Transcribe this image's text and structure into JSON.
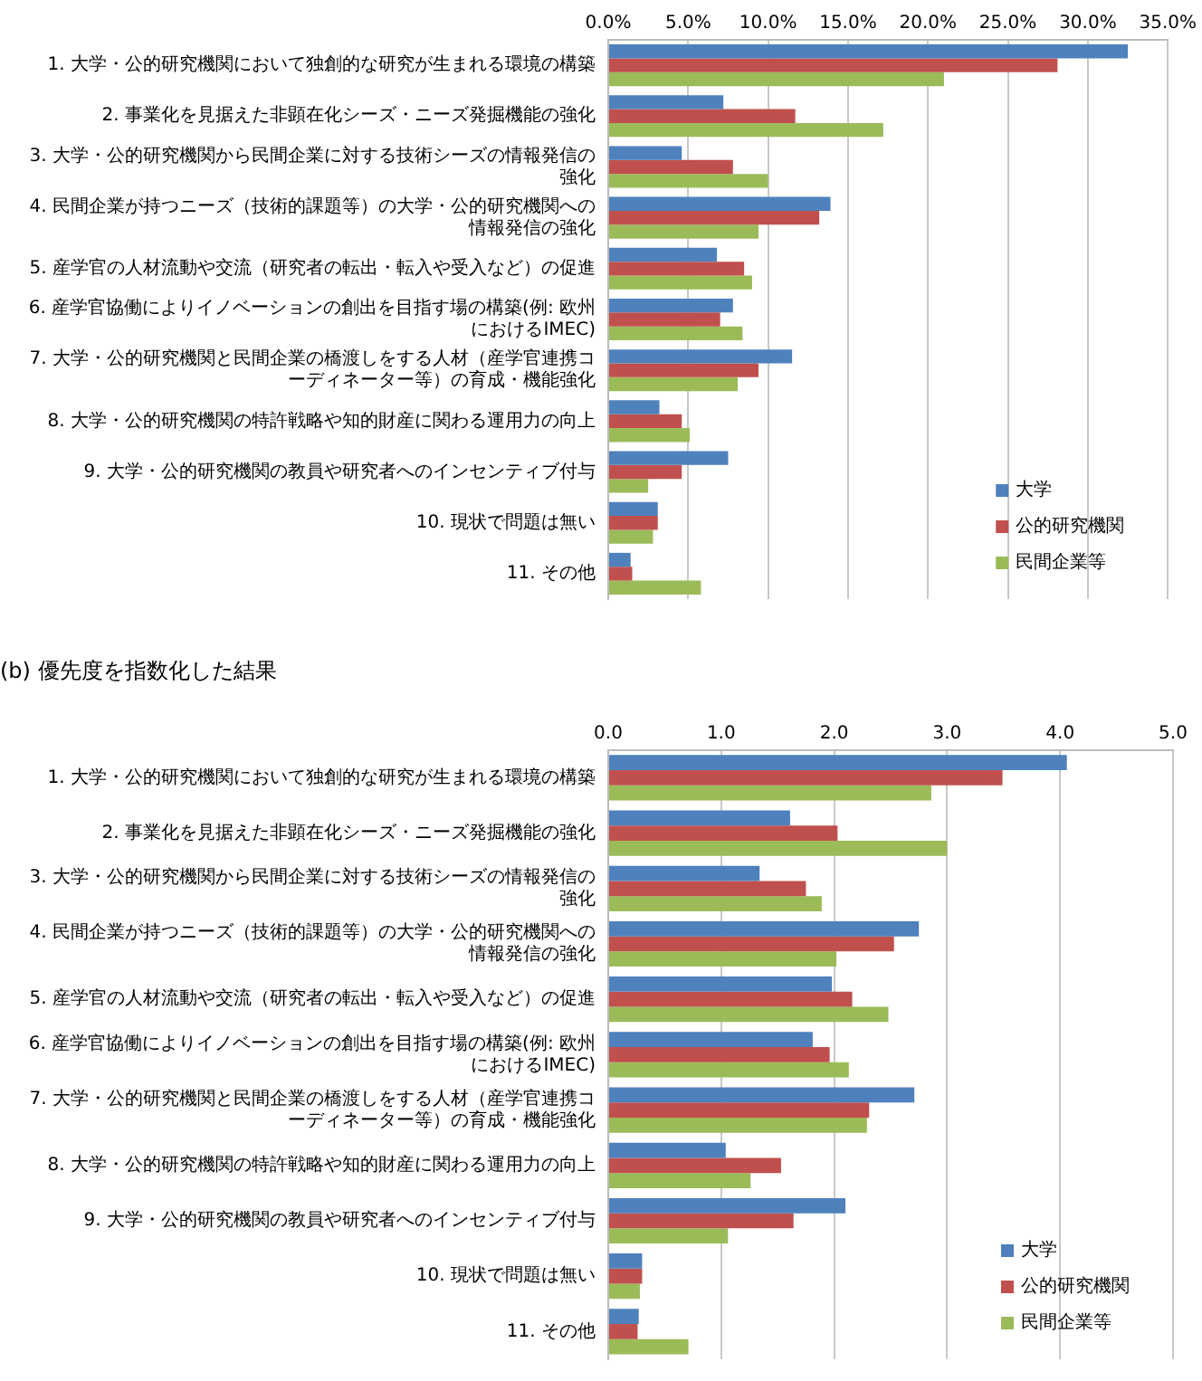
{
  "chart_data": [
    {
      "type": "bar",
      "orientation": "horizontal",
      "categories": [
        "1. 大学・公的研究機関において独創的な研究が生まれる環境の構築",
        "2. 事業化を見据えた非顕在化シーズ・ニーズ発掘機能の強化",
        "3. 大学・公的研究機関から民間企業に対する技術シーズの情報発信の強化",
        "4. 民間企業が持つニーズ（技術的課題等）の大学・公的研究機関への情報発信の強化",
        "5. 産学官の人材流動や交流（研究者の転出・転入や受入など）の促進",
        "6. 産学官協働によりイノベーションの創出を目指す場の構築(例: 欧州におけるIMEC)",
        "7. 大学・公的研究機関と民間企業の橋渡しをする人材（産学官連携コーディネーター等）の育成・機能強化",
        "8. 大学・公的研究機関の特許戦略や知的財産に関わる運用力の向上",
        "9. 大学・公的研究機関の教員や研究者へのインセンティブ付与",
        "10. 現状で問題は無い",
        "11. その他"
      ],
      "series": [
        {
          "name": "大学",
          "color": "#4f81bd",
          "values": [
            32.5,
            7.2,
            4.6,
            13.9,
            6.8,
            7.8,
            11.5,
            3.2,
            7.5,
            3.1,
            1.4
          ]
        },
        {
          "name": "公的研究機関",
          "color": "#c0504d",
          "values": [
            28.1,
            11.7,
            7.8,
            13.2,
            8.5,
            7.0,
            9.4,
            4.6,
            4.6,
            3.1,
            1.5
          ]
        },
        {
          "name": "民間企業等",
          "color": "#9bbb59",
          "values": [
            21.0,
            17.2,
            10.0,
            9.4,
            9.0,
            8.4,
            8.1,
            5.1,
            2.5,
            2.8,
            5.8
          ]
        }
      ],
      "xlim": [
        0,
        35
      ],
      "xticks": [
        {
          "value": 0,
          "label": "0.0%"
        },
        {
          "value": 5,
          "label": "5.0%"
        },
        {
          "value": 10,
          "label": "10.0%"
        },
        {
          "value": 15,
          "label": "15.0%"
        },
        {
          "value": 20,
          "label": "20.0%"
        },
        {
          "value": 25,
          "label": "25.0%"
        },
        {
          "value": 30,
          "label": "30.0%"
        },
        {
          "value": 35,
          "label": "35.0%"
        }
      ],
      "grid": "x",
      "legend": "bottom right"
    },
    {
      "type": "bar",
      "orientation": "horizontal",
      "title": "(b) 優先度を指数化した結果",
      "categories": [
        "1. 大学・公的研究機関において独創的な研究が生まれる環境の構築",
        "2. 事業化を見据えた非顕在化シーズ・ニーズ発掘機能の強化",
        "3. 大学・公的研究機関から民間企業に対する技術シーズの情報発信の強化",
        "4. 民間企業が持つニーズ（技術的課題等）の大学・公的研究機関への情報発信の強化",
        "5. 産学官の人材流動や交流（研究者の転出・転入や受入など）の促進",
        "6. 産学官協働によりイノベーションの創出を目指す場の構築(例: 欧州におけるIMEC)",
        "7. 大学・公的研究機関と民間企業の橋渡しをする人材（産学官連携コーディネーター等）の育成・機能強化",
        "8. 大学・公的研究機関の特許戦略や知的財産に関わる運用力の向上",
        "9. 大学・公的研究機関の教員や研究者へのインセンティブ付与",
        "10. 現状で問題は無い",
        "11. その他"
      ],
      "series": [
        {
          "name": "大学",
          "color": "#4f81bd",
          "values": [
            4.06,
            1.61,
            1.34,
            2.75,
            1.98,
            1.81,
            2.71,
            1.04,
            2.1,
            0.3,
            0.27
          ]
        },
        {
          "name": "公的研究機関",
          "color": "#c0504d",
          "values": [
            3.49,
            2.03,
            1.75,
            2.53,
            2.16,
            1.96,
            2.31,
            1.53,
            1.64,
            0.3,
            0.26
          ]
        },
        {
          "name": "民間企業等",
          "color": "#9bbb59",
          "values": [
            2.86,
            3.0,
            1.89,
            2.02,
            2.48,
            2.13,
            2.29,
            1.26,
            1.06,
            0.28,
            0.71
          ]
        }
      ],
      "xlim": [
        0,
        5
      ],
      "xticks": [
        {
          "value": 0,
          "label": "0.0"
        },
        {
          "value": 1,
          "label": "1.0"
        },
        {
          "value": 2,
          "label": "2.0"
        },
        {
          "value": 3,
          "label": "3.0"
        },
        {
          "value": 4,
          "label": "4.0"
        },
        {
          "value": 5,
          "label": "5.0"
        }
      ],
      "grid": "x",
      "legend": "bottom right"
    }
  ]
}
